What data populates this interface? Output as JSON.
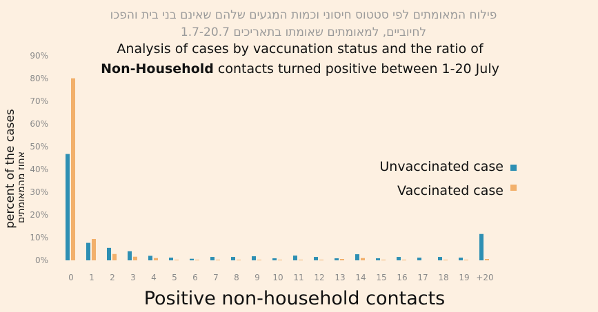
{
  "chart_data": {
    "type": "bar",
    "title_hebrew_line1": "פילוח המאומתים לפי סטטוס חיסוני וכמות המגעים שלהם שאינם בני בית והפכו",
    "title_hebrew_line2": "לחיוביים, למאומתים שאומתו בתאריכים 1.7-20.7",
    "title_line1": "Analysis of cases by vaccunation status and the ratio of",
    "title_line2_bold": "Non-Household",
    "title_line2_rest": " contacts turned positive between 1-20 July",
    "xlabel": "Positive non-household contacts",
    "ylabel": "percent of the cases",
    "ylabel_hebrew": "אחוז מהמאומתים",
    "ylim": [
      0,
      90
    ],
    "yticks": [
      "0%",
      "10%",
      "20%",
      "30%",
      "40%",
      "50%",
      "60%",
      "70%",
      "80%",
      "90%"
    ],
    "categories": [
      "0",
      "1",
      "2",
      "3",
      "4",
      "5",
      "6",
      "7",
      "8",
      "9",
      "10",
      "11",
      "12",
      "13",
      "14",
      "15",
      "16",
      "17",
      "18",
      "19",
      "+20"
    ],
    "series": [
      {
        "name": "Unvaccinated case",
        "color": "#2e8fb3",
        "values": [
          46.8,
          7.7,
          5.5,
          4.0,
          2.0,
          1.2,
          0.7,
          1.5,
          1.5,
          1.8,
          0.9,
          2.1,
          1.5,
          0.9,
          2.7,
          0.9,
          1.5,
          1.2,
          1.5,
          1.2,
          11.6
        ]
      },
      {
        "name": "Vaccinated case",
        "color": "#f2b06b",
        "values": [
          80.1,
          9.4,
          2.8,
          1.6,
          1.0,
          0.3,
          0.3,
          0.3,
          0.3,
          0.3,
          0.3,
          0.3,
          0.3,
          0.6,
          1.0,
          0.3,
          0.3,
          0.0,
          0.3,
          0.3,
          0.6
        ]
      }
    ],
    "grid": false,
    "legend": "right"
  }
}
